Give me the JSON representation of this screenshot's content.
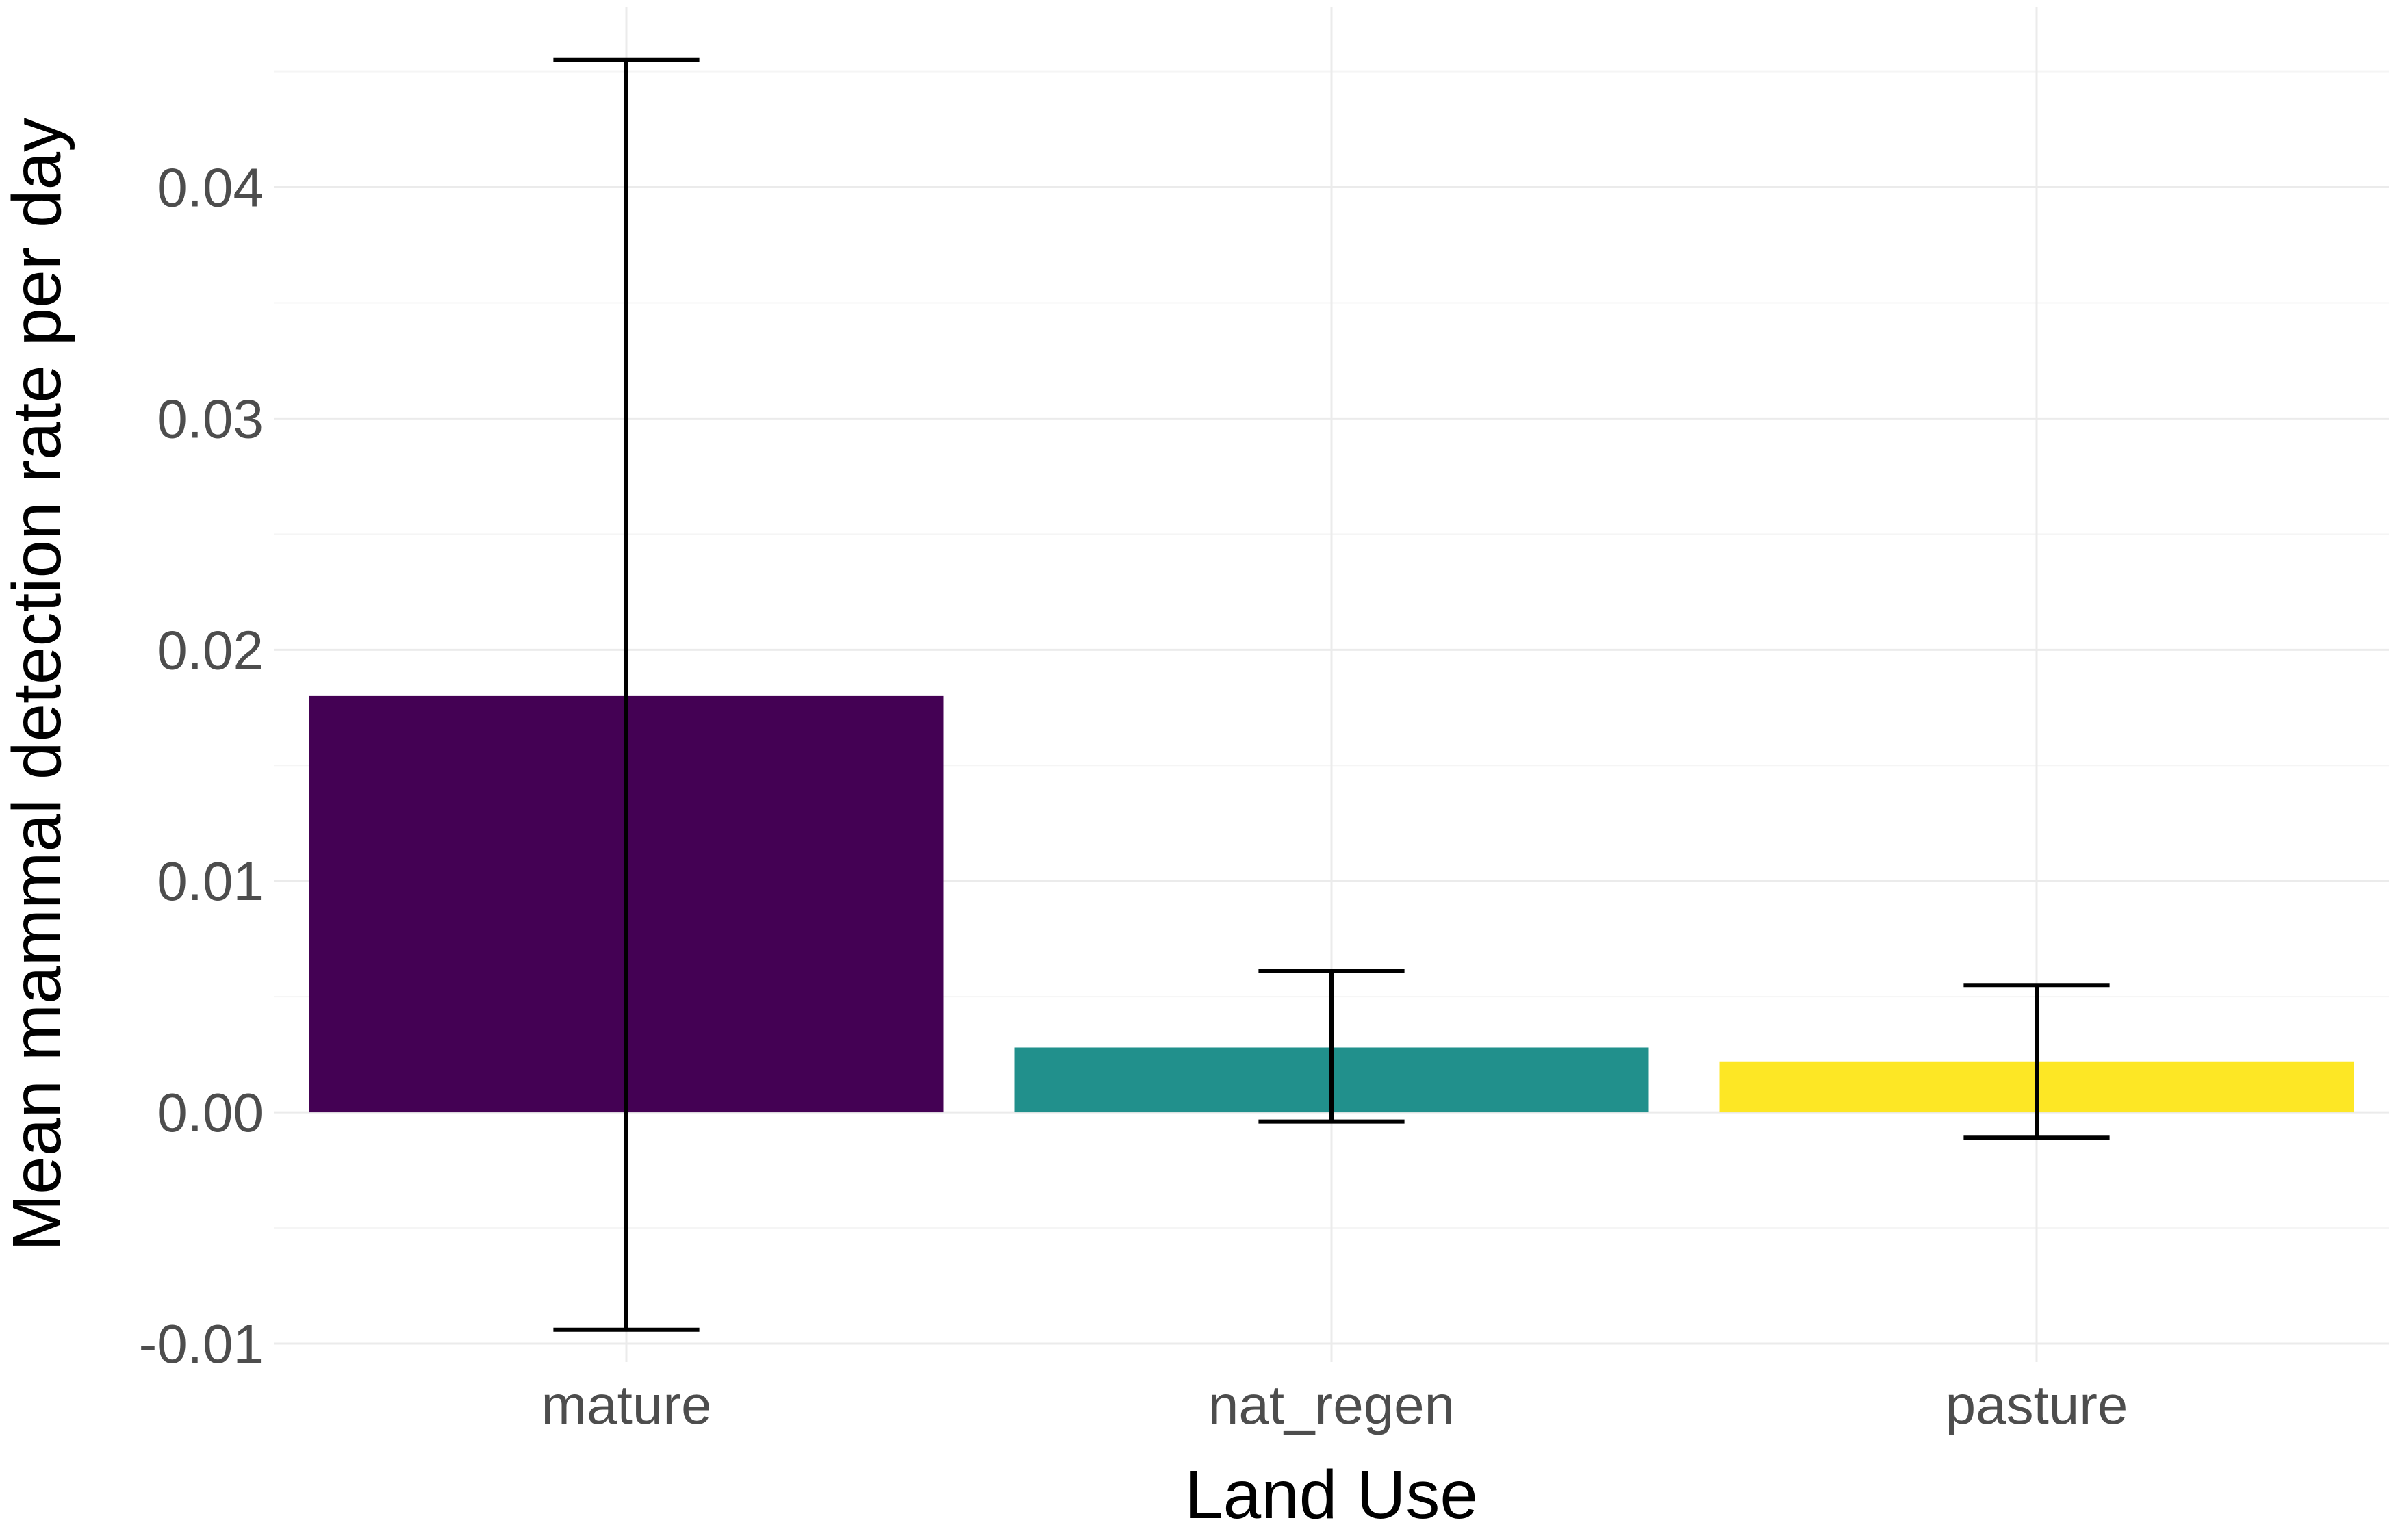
{
  "chart_data": {
    "type": "bar",
    "categories": [
      "mature",
      "nat_regen",
      "pasture"
    ],
    "values": [
      0.018,
      0.0028,
      0.0022
    ],
    "error_lower": [
      -0.0094,
      -0.0004,
      -0.0011
    ],
    "error_upper": [
      0.0455,
      0.0061,
      0.0055
    ],
    "colors": [
      "#440154",
      "#21908C",
      "#FDE725"
    ],
    "xlabel": "Land Use",
    "ylabel": "Mean mammal detection rate per day",
    "ylim": [
      -0.0108,
      0.0478
    ],
    "yticks": [
      -0.01,
      0.0,
      0.01,
      0.02,
      0.03,
      0.04
    ],
    "ytick_labels": [
      "-0.01",
      "0.00",
      "0.01",
      "0.02",
      "0.03",
      "0.04"
    ],
    "grid": true,
    "legend": "none"
  }
}
